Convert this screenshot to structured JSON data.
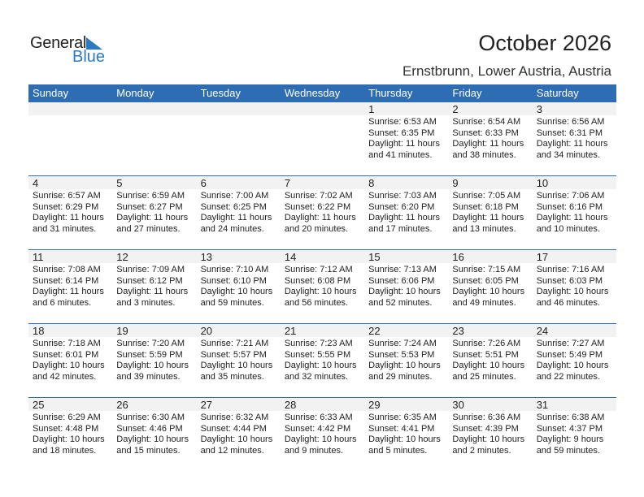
{
  "logo": {
    "text1": "General",
    "text2": "Blue"
  },
  "title": "October 2026",
  "location": "Ernstbrunn, Lower Austria, Austria",
  "colors": {
    "header": "#2e6db4",
    "date_band": "#f2f2f2",
    "logo_blue": "#2a7ac4"
  },
  "weekdays": [
    "Sunday",
    "Monday",
    "Tuesday",
    "Wednesday",
    "Thursday",
    "Friday",
    "Saturday"
  ],
  "weeks": [
    [
      null,
      null,
      null,
      null,
      {
        "day": "1",
        "sunrise": "Sunrise: 6:53 AM",
        "sunset": "Sunset: 6:35 PM",
        "daylight1": "Daylight: 11 hours",
        "daylight2": "and 41 minutes."
      },
      {
        "day": "2",
        "sunrise": "Sunrise: 6:54 AM",
        "sunset": "Sunset: 6:33 PM",
        "daylight1": "Daylight: 11 hours",
        "daylight2": "and 38 minutes."
      },
      {
        "day": "3",
        "sunrise": "Sunrise: 6:56 AM",
        "sunset": "Sunset: 6:31 PM",
        "daylight1": "Daylight: 11 hours",
        "daylight2": "and 34 minutes."
      }
    ],
    [
      {
        "day": "4",
        "sunrise": "Sunrise: 6:57 AM",
        "sunset": "Sunset: 6:29 PM",
        "daylight1": "Daylight: 11 hours",
        "daylight2": "and 31 minutes."
      },
      {
        "day": "5",
        "sunrise": "Sunrise: 6:59 AM",
        "sunset": "Sunset: 6:27 PM",
        "daylight1": "Daylight: 11 hours",
        "daylight2": "and 27 minutes."
      },
      {
        "day": "6",
        "sunrise": "Sunrise: 7:00 AM",
        "sunset": "Sunset: 6:25 PM",
        "daylight1": "Daylight: 11 hours",
        "daylight2": "and 24 minutes."
      },
      {
        "day": "7",
        "sunrise": "Sunrise: 7:02 AM",
        "sunset": "Sunset: 6:22 PM",
        "daylight1": "Daylight: 11 hours",
        "daylight2": "and 20 minutes."
      },
      {
        "day": "8",
        "sunrise": "Sunrise: 7:03 AM",
        "sunset": "Sunset: 6:20 PM",
        "daylight1": "Daylight: 11 hours",
        "daylight2": "and 17 minutes."
      },
      {
        "day": "9",
        "sunrise": "Sunrise: 7:05 AM",
        "sunset": "Sunset: 6:18 PM",
        "daylight1": "Daylight: 11 hours",
        "daylight2": "and 13 minutes."
      },
      {
        "day": "10",
        "sunrise": "Sunrise: 7:06 AM",
        "sunset": "Sunset: 6:16 PM",
        "daylight1": "Daylight: 11 hours",
        "daylight2": "and 10 minutes."
      }
    ],
    [
      {
        "day": "11",
        "sunrise": "Sunrise: 7:08 AM",
        "sunset": "Sunset: 6:14 PM",
        "daylight1": "Daylight: 11 hours",
        "daylight2": "and 6 minutes."
      },
      {
        "day": "12",
        "sunrise": "Sunrise: 7:09 AM",
        "sunset": "Sunset: 6:12 PM",
        "daylight1": "Daylight: 11 hours",
        "daylight2": "and 3 minutes."
      },
      {
        "day": "13",
        "sunrise": "Sunrise: 7:10 AM",
        "sunset": "Sunset: 6:10 PM",
        "daylight1": "Daylight: 10 hours",
        "daylight2": "and 59 minutes."
      },
      {
        "day": "14",
        "sunrise": "Sunrise: 7:12 AM",
        "sunset": "Sunset: 6:08 PM",
        "daylight1": "Daylight: 10 hours",
        "daylight2": "and 56 minutes."
      },
      {
        "day": "15",
        "sunrise": "Sunrise: 7:13 AM",
        "sunset": "Sunset: 6:06 PM",
        "daylight1": "Daylight: 10 hours",
        "daylight2": "and 52 minutes."
      },
      {
        "day": "16",
        "sunrise": "Sunrise: 7:15 AM",
        "sunset": "Sunset: 6:05 PM",
        "daylight1": "Daylight: 10 hours",
        "daylight2": "and 49 minutes."
      },
      {
        "day": "17",
        "sunrise": "Sunrise: 7:16 AM",
        "sunset": "Sunset: 6:03 PM",
        "daylight1": "Daylight: 10 hours",
        "daylight2": "and 46 minutes."
      }
    ],
    [
      {
        "day": "18",
        "sunrise": "Sunrise: 7:18 AM",
        "sunset": "Sunset: 6:01 PM",
        "daylight1": "Daylight: 10 hours",
        "daylight2": "and 42 minutes."
      },
      {
        "day": "19",
        "sunrise": "Sunrise: 7:20 AM",
        "sunset": "Sunset: 5:59 PM",
        "daylight1": "Daylight: 10 hours",
        "daylight2": "and 39 minutes."
      },
      {
        "day": "20",
        "sunrise": "Sunrise: 7:21 AM",
        "sunset": "Sunset: 5:57 PM",
        "daylight1": "Daylight: 10 hours",
        "daylight2": "and 35 minutes."
      },
      {
        "day": "21",
        "sunrise": "Sunrise: 7:23 AM",
        "sunset": "Sunset: 5:55 PM",
        "daylight1": "Daylight: 10 hours",
        "daylight2": "and 32 minutes."
      },
      {
        "day": "22",
        "sunrise": "Sunrise: 7:24 AM",
        "sunset": "Sunset: 5:53 PM",
        "daylight1": "Daylight: 10 hours",
        "daylight2": "and 29 minutes."
      },
      {
        "day": "23",
        "sunrise": "Sunrise: 7:26 AM",
        "sunset": "Sunset: 5:51 PM",
        "daylight1": "Daylight: 10 hours",
        "daylight2": "and 25 minutes."
      },
      {
        "day": "24",
        "sunrise": "Sunrise: 7:27 AM",
        "sunset": "Sunset: 5:49 PM",
        "daylight1": "Daylight: 10 hours",
        "daylight2": "and 22 minutes."
      }
    ],
    [
      {
        "day": "25",
        "sunrise": "Sunrise: 6:29 AM",
        "sunset": "Sunset: 4:48 PM",
        "daylight1": "Daylight: 10 hours",
        "daylight2": "and 18 minutes."
      },
      {
        "day": "26",
        "sunrise": "Sunrise: 6:30 AM",
        "sunset": "Sunset: 4:46 PM",
        "daylight1": "Daylight: 10 hours",
        "daylight2": "and 15 minutes."
      },
      {
        "day": "27",
        "sunrise": "Sunrise: 6:32 AM",
        "sunset": "Sunset: 4:44 PM",
        "daylight1": "Daylight: 10 hours",
        "daylight2": "and 12 minutes."
      },
      {
        "day": "28",
        "sunrise": "Sunrise: 6:33 AM",
        "sunset": "Sunset: 4:42 PM",
        "daylight1": "Daylight: 10 hours",
        "daylight2": "and 9 minutes."
      },
      {
        "day": "29",
        "sunrise": "Sunrise: 6:35 AM",
        "sunset": "Sunset: 4:41 PM",
        "daylight1": "Daylight: 10 hours",
        "daylight2": "and 5 minutes."
      },
      {
        "day": "30",
        "sunrise": "Sunrise: 6:36 AM",
        "sunset": "Sunset: 4:39 PM",
        "daylight1": "Daylight: 10 hours",
        "daylight2": "and 2 minutes."
      },
      {
        "day": "31",
        "sunrise": "Sunrise: 6:38 AM",
        "sunset": "Sunset: 4:37 PM",
        "daylight1": "Daylight: 9 hours",
        "daylight2": "and 59 minutes."
      }
    ]
  ]
}
